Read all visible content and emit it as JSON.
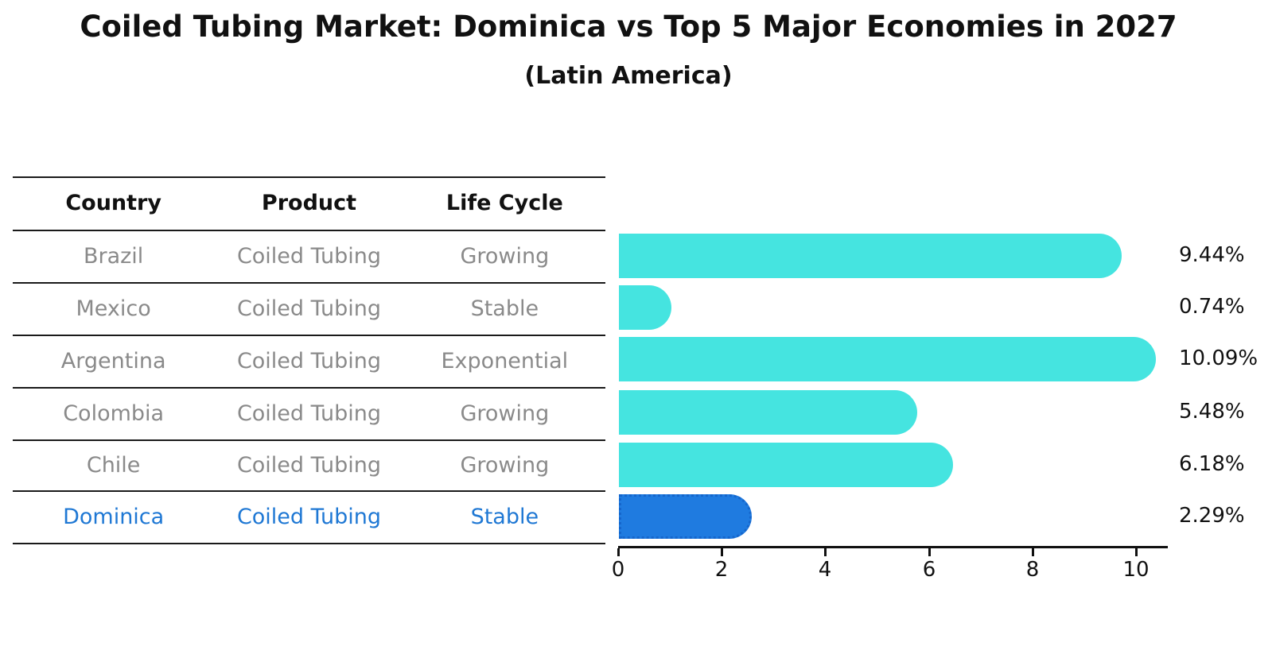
{
  "title": "Coiled Tubing Market: Dominica vs Top 5 Major Economies in 2027",
  "subtitle": "(Latin America)",
  "table": {
    "headers": [
      "Country",
      "Product",
      "Life Cycle"
    ],
    "rows": [
      {
        "country": "Brazil",
        "product": "Coiled Tubing",
        "life_cycle": "Growing",
        "highlight": false
      },
      {
        "country": "Mexico",
        "product": "Coiled Tubing",
        "life_cycle": "Stable",
        "highlight": false
      },
      {
        "country": "Argentina",
        "product": "Coiled Tubing",
        "life_cycle": "Exponential",
        "highlight": false
      },
      {
        "country": "Colombia",
        "product": "Coiled Tubing",
        "life_cycle": "Growing",
        "highlight": false
      },
      {
        "country": "Chile",
        "product": "Coiled Tubing",
        "life_cycle": "Growing",
        "highlight": false
      },
      {
        "country": "Dominica",
        "product": "Coiled Tubing",
        "life_cycle": "Stable",
        "highlight": true
      }
    ]
  },
  "chart_data": {
    "type": "bar",
    "orientation": "horizontal",
    "title": "Coiled Tubing Market: Dominica vs Top 5 Major Economies in 2027 (Latin America)",
    "categories": [
      "Brazil",
      "Mexico",
      "Argentina",
      "Colombia",
      "Chile",
      "Dominica"
    ],
    "values": [
      9.44,
      0.74,
      10.09,
      5.48,
      6.18,
      2.29
    ],
    "value_labels": [
      "9.44%",
      "0.74%",
      "10.09%",
      "5.48%",
      "6.18%",
      "2.29%"
    ],
    "unit": "%",
    "xticks": [
      0,
      2,
      4,
      6,
      8,
      10
    ],
    "xlim": [
      0,
      10.6
    ],
    "grid": false,
    "legend": null,
    "bar_color": "#45e4e0",
    "highlight_bar_color": "#1f7be0",
    "highlight_border_color": "#1566cc",
    "highlight_index": 5,
    "highlight_text_color": "#1f78d4",
    "text_color_muted": "#8a8a8a"
  }
}
